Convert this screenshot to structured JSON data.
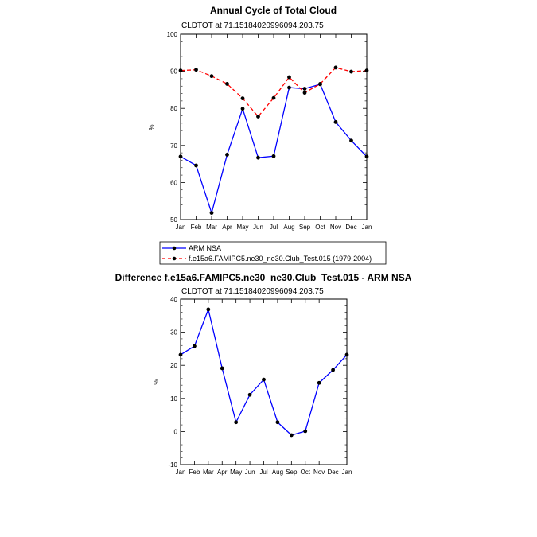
{
  "chart_data": [
    {
      "type": "line",
      "title": "Annual Cycle of Total Cloud",
      "subtitle": "CLDTOT at 71.15184020996094,203.75",
      "xlabel": "",
      "ylabel": "%",
      "categories": [
        "Jan",
        "Feb",
        "Mar",
        "Apr",
        "May",
        "Jun",
        "Jul",
        "Aug",
        "Sep",
        "Oct",
        "Nov",
        "Dec",
        "Jan"
      ],
      "ylim": [
        50,
        100
      ],
      "yticks": [
        "50",
        "60",
        "70",
        "80",
        "90",
        "100"
      ],
      "series": [
        {
          "name": "ARM NSA",
          "color": "#0000ff",
          "dash": "solid",
          "values": [
            67.0,
            64.6,
            51.8,
            67.5,
            79.9,
            66.7,
            67.1,
            85.6,
            85.3,
            86.5,
            76.3,
            71.3,
            67.0
          ]
        },
        {
          "name": "f.e15a6.FAMIPC5.ne30_ne30.Club_Test.015 (1979-2004)",
          "color": "#ff0000",
          "dash": "dashed",
          "values": [
            90.2,
            90.4,
            88.7,
            86.6,
            82.7,
            77.8,
            82.8,
            88.4,
            84.2,
            86.6,
            91.0,
            89.9,
            90.2
          ]
        }
      ],
      "legend": "below"
    },
    {
      "type": "line",
      "title": "Difference f.e15a6.FAMIPC5.ne30_ne30.Club_Test.015 - ARM NSA",
      "subtitle": "CLDTOT at 71.15184020996094,203.75",
      "xlabel": "",
      "ylabel": "%",
      "categories": [
        "Jan",
        "Feb",
        "Mar",
        "Apr",
        "May",
        "Jun",
        "Jul",
        "Aug",
        "Sep",
        "Oct",
        "Nov",
        "Dec",
        "Jan"
      ],
      "ylim": [
        -10,
        40
      ],
      "yticks": [
        "-10",
        "0",
        "10",
        "20",
        "30",
        "40"
      ],
      "series": [
        {
          "name": "Difference",
          "color": "#0000ff",
          "dash": "solid",
          "values": [
            23.2,
            25.8,
            36.9,
            19.1,
            2.8,
            11.1,
            15.7,
            2.8,
            -1.1,
            0.1,
            14.7,
            18.6,
            23.2
          ]
        }
      ]
    }
  ]
}
